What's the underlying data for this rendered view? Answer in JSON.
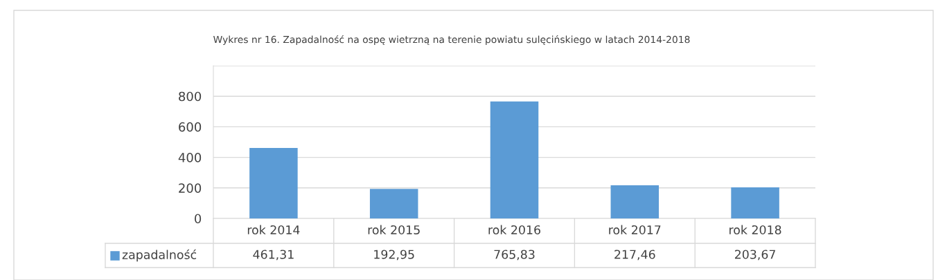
{
  "chart_data": {
    "type": "bar",
    "title": "Wykres nr 16. Zapadalność na ospę wietrzną na terenie powiatu sulęcińskiego w latach 2014-2018",
    "categories": [
      "rok 2014",
      "rok 2015",
      "rok 2016",
      "rok 2017",
      "rok 2018"
    ],
    "series": [
      {
        "name": "zapadalność",
        "color": "#5b9bd5",
        "values": [
          461.31,
          192.95,
          765.83,
          217.46,
          203.67
        ],
        "value_labels": [
          "461,31",
          "192,95",
          "765,83",
          "217,46",
          "203,67"
        ]
      }
    ],
    "ylim": [
      0,
      1000
    ],
    "yticks": [
      0,
      200,
      400,
      600,
      800,
      {
        "value": 1000,
        "label": null
      }
    ],
    "grid": "y"
  }
}
